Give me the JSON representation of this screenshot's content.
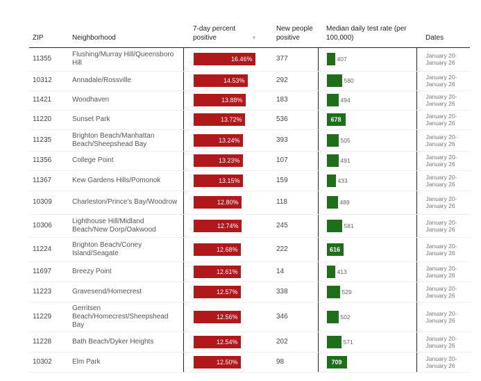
{
  "columns": {
    "zip": "ZIP",
    "neighborhood": "Neighborhood",
    "pct": "7-day percent positive",
    "new": "New people positive",
    "median": "Median daily test rate (per 100,000)",
    "dates": "Dates"
  },
  "sort_icon": "sort-down-triangle",
  "colors": {
    "percent_bar": "#b0181b",
    "test_bar": "#1f6f1a"
  },
  "rows": [
    {
      "zip": "11355",
      "neighborhood": "Flushing/Murray Hill/Queensboro Hill",
      "pct": 16.46,
      "pct_label": "16.46%",
      "new": "377",
      "median": 407,
      "median_label": "407",
      "dates": "January 20-January 26"
    },
    {
      "zip": "10312",
      "neighborhood": "Annadale/Rossville",
      "pct": 14.53,
      "pct_label": "14.53%",
      "new": "292",
      "median": 580,
      "median_label": "580",
      "dates": "January 20-January 26"
    },
    {
      "zip": "11421",
      "neighborhood": "Woodhaven",
      "pct": 13.88,
      "pct_label": "13.88%",
      "new": "183",
      "median": 494,
      "median_label": "494",
      "dates": "January 20-January 26"
    },
    {
      "zip": "11220",
      "neighborhood": "Sunset Park",
      "pct": 13.72,
      "pct_label": "13.72%",
      "new": "536",
      "median": 678,
      "median_label": "678",
      "dates": "January 20-January 26"
    },
    {
      "zip": "11235",
      "neighborhood": "Brighton Beach/Manhattan Beach/Sheepshead Bay",
      "pct": 13.24,
      "pct_label": "13.24%",
      "new": "393",
      "median": 505,
      "median_label": "505",
      "dates": "January 20-January 26"
    },
    {
      "zip": "11356",
      "neighborhood": "College Point",
      "pct": 13.23,
      "pct_label": "13.23%",
      "new": "107",
      "median": 491,
      "median_label": "491",
      "dates": "January 20-January 26"
    },
    {
      "zip": "11367",
      "neighborhood": "Kew Gardens Hills/Pomonok",
      "pct": 13.15,
      "pct_label": "13.15%",
      "new": "159",
      "median": 433,
      "median_label": "433",
      "dates": "January 20-January 26"
    },
    {
      "zip": "10309",
      "neighborhood": "Charleston/Prince's Bay/Woodrow",
      "pct": 12.8,
      "pct_label": "12.80%",
      "new": "118",
      "median": 489,
      "median_label": "489",
      "dates": "January 20-January 26"
    },
    {
      "zip": "10306",
      "neighborhood": "Lighthouse Hill/Midland Beach/New Dorp/Oakwood",
      "pct": 12.74,
      "pct_label": "12.74%",
      "new": "245",
      "median": 581,
      "median_label": "581",
      "dates": "January 20-January 26"
    },
    {
      "zip": "11224",
      "neighborhood": "Brighton Beach/Coney Island/Seagate",
      "pct": 12.68,
      "pct_label": "12.68%",
      "new": "222",
      "median": 616,
      "median_label": "616",
      "dates": "January 20-January 26"
    },
    {
      "zip": "11697",
      "neighborhood": "Breezy Point",
      "pct": 12.61,
      "pct_label": "12.61%",
      "new": "14",
      "median": 413,
      "median_label": "413",
      "dates": "January 20-January 26"
    },
    {
      "zip": "11223",
      "neighborhood": "Gravesend/Homecrest",
      "pct": 12.57,
      "pct_label": "12.57%",
      "new": "338",
      "median": 529,
      "median_label": "529",
      "dates": "January 20-January 26"
    },
    {
      "zip": "11229",
      "neighborhood": "Gerritsen Beach/Homecrest/Sheepshead Bay",
      "pct": 12.56,
      "pct_label": "12.56%",
      "new": "346",
      "median": 502,
      "median_label": "502",
      "dates": "January 20-January 26"
    },
    {
      "zip": "11228",
      "neighborhood": "Bath Beach/Dyker Heights",
      "pct": 12.54,
      "pct_label": "12.54%",
      "new": "202",
      "median": 571,
      "median_label": "571",
      "dates": "January 20-January 26"
    },
    {
      "zip": "10302",
      "neighborhood": "Elm Park",
      "pct": 12.5,
      "pct_label": "12.50%",
      "new": "98",
      "median": 709,
      "median_label": "709",
      "dates": "January 20-January 26"
    }
  ]
}
